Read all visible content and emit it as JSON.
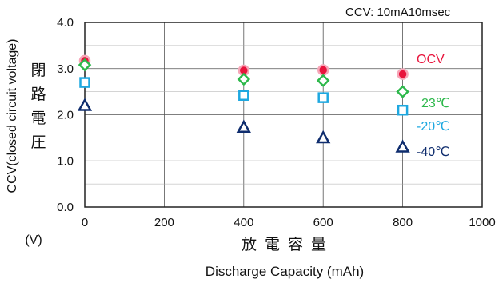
{
  "chart_data": {
    "type": "scatter",
    "title": "",
    "annotation": "CCV: 10mA10msec",
    "xlabel": "Discharge Capacity (mAh)",
    "xlabel_jp": "放 電 容 量",
    "ylabel": "CCV(closed circuit voltage)",
    "ylabel_jp": "閉路電圧",
    "yunit": "(V)",
    "xlim": [
      0,
      1000
    ],
    "ylim": [
      0.0,
      4.0
    ],
    "xticks": [
      "0",
      "200",
      "400",
      "600",
      "800",
      "1000"
    ],
    "yticks": [
      "0.0",
      "1.0",
      "2.0",
      "3.0",
      "4.0"
    ],
    "grid": true,
    "x": [
      0,
      400,
      600,
      800
    ],
    "series": [
      {
        "name": "OCV",
        "marker": "circle",
        "color": "#e8143c",
        "values": [
          3.17,
          2.96,
          2.97,
          2.88
        ]
      },
      {
        "name": "23℃",
        "marker": "diamond",
        "color": "#2db84b",
        "values": [
          3.08,
          2.77,
          2.74,
          2.5
        ]
      },
      {
        "name": "-20℃",
        "marker": "square",
        "color": "#1ea8e0",
        "values": [
          2.7,
          2.42,
          2.37,
          2.1
        ]
      },
      {
        "name": "-40℃",
        "marker": "triangle",
        "color": "#0f2d6e",
        "values": [
          2.2,
          1.73,
          1.5,
          1.3
        ]
      }
    ]
  }
}
